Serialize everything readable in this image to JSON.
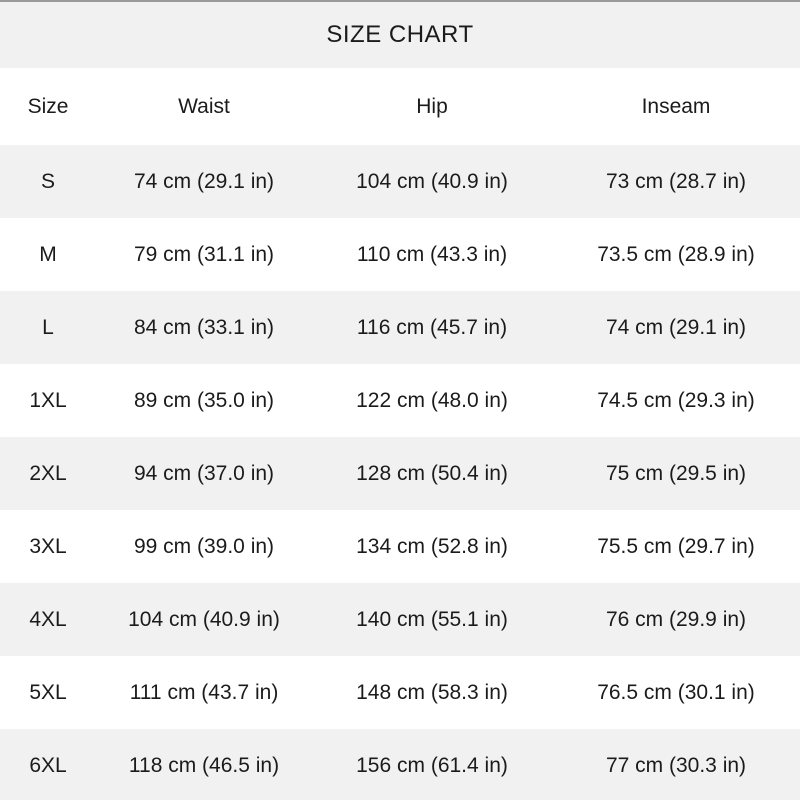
{
  "title": "SIZE CHART",
  "chart_data": {
    "type": "table",
    "title": "SIZE CHART",
    "columns": [
      "Size",
      "Waist",
      "Hip",
      "Inseam"
    ],
    "rows": [
      [
        "S",
        "74 cm (29.1 in)",
        "104 cm (40.9 in)",
        "73 cm (28.7 in)"
      ],
      [
        "M",
        "79 cm (31.1 in)",
        "110 cm (43.3 in)",
        "73.5 cm (28.9 in)"
      ],
      [
        "L",
        "84 cm (33.1 in)",
        "116 cm (45.7 in)",
        "74 cm (29.1 in)"
      ],
      [
        "1XL",
        "89 cm (35.0 in)",
        "122 cm (48.0 in)",
        "74.5 cm (29.3 in)"
      ],
      [
        "2XL",
        "94 cm (37.0 in)",
        "128 cm (50.4 in)",
        "75 cm (29.5 in)"
      ],
      [
        "3XL",
        "99 cm (39.0 in)",
        "134 cm (52.8 in)",
        "75.5 cm (29.7 in)"
      ],
      [
        "4XL",
        "104 cm (40.9 in)",
        "140 cm (55.1 in)",
        "76 cm (29.9 in)"
      ],
      [
        "5XL",
        "111 cm (43.7 in)",
        "148 cm (58.3 in)",
        "76.5 cm (30.1 in)"
      ],
      [
        "6XL",
        "118 cm (46.5 in)",
        "156 cm (61.4 in)",
        "77 cm (30.3 in)"
      ]
    ]
  },
  "colors": {
    "band_gray": "#f2f1f2",
    "text": "#1b1b1b",
    "top_rule": "#9a9a9a"
  }
}
